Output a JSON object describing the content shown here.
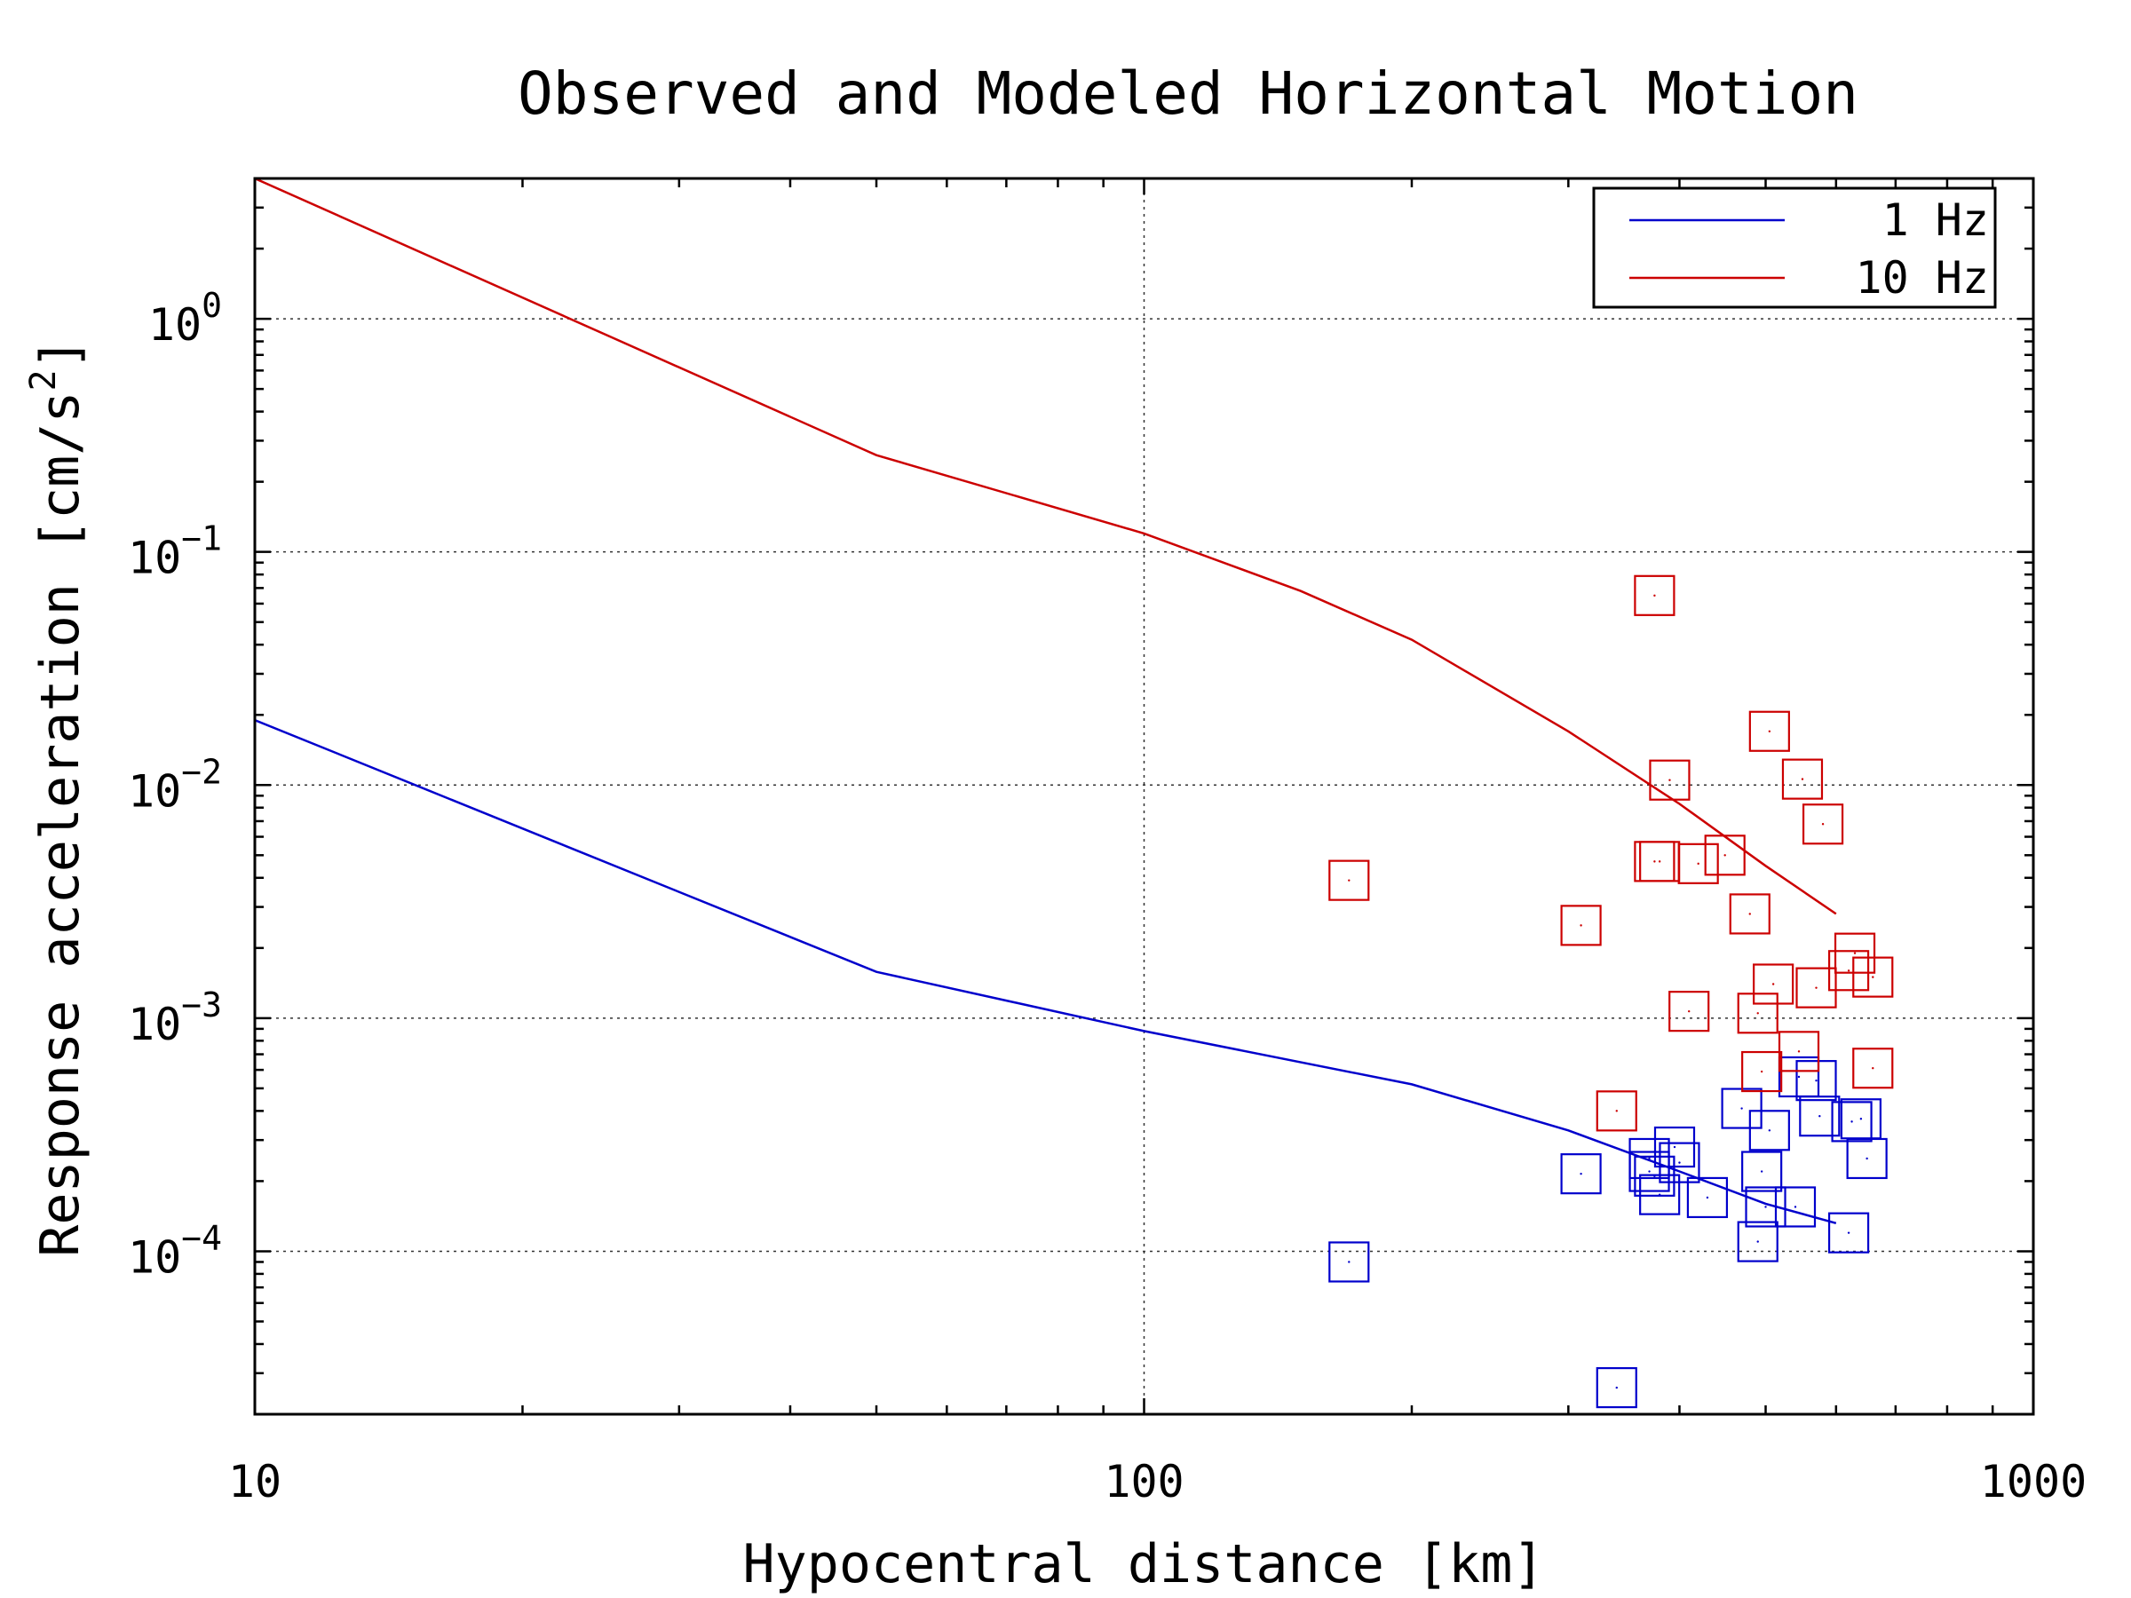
{
  "chart_data": {
    "type": "scatter",
    "title": "Observed and Modeled Horizontal Motion",
    "xlabel": "Hypocentral distance [km]",
    "ylabel": "Response acceleration [cm/s²]",
    "ylabel_base": "Response acceleration [cm/s",
    "ylabel_sup": "2",
    "ylabel_end": "]",
    "x_scale": "log",
    "y_scale": "log",
    "xlim": [
      10,
      1000
    ],
    "ylim": [
      2e-05,
      4
    ],
    "grid": true,
    "legend_position": "top-right",
    "x_ticks": [
      {
        "value": 10,
        "label": "10"
      },
      {
        "value": 100,
        "label": "100"
      },
      {
        "value": 1000,
        "label": "1000"
      }
    ],
    "y_ticks": [
      {
        "value": 0.0001,
        "base": "10",
        "exp": "−4"
      },
      {
        "value": 0.001,
        "base": "10",
        "exp": "−3"
      },
      {
        "value": 0.01,
        "base": "10",
        "exp": "−2"
      },
      {
        "value": 0.1,
        "base": "10",
        "exp": "−1"
      },
      {
        "value": 1,
        "base": "10",
        "exp": "0"
      }
    ],
    "series": [
      {
        "name": "1 Hz",
        "color": "#0000cc",
        "model_line": [
          [
            10,
            0.019
          ],
          [
            50,
            0.00158
          ],
          [
            100,
            0.00088
          ],
          [
            200,
            0.00052
          ],
          [
            300,
            0.00033
          ],
          [
            400,
            0.00022
          ],
          [
            500,
            0.00016
          ],
          [
            600,
            0.000132
          ]
        ],
        "observed": [
          [
            170,
            9e-05
          ],
          [
            310,
            0.000215
          ],
          [
            340,
            2.6e-05
          ],
          [
            370,
            0.00025
          ],
          [
            370,
            0.00022
          ],
          [
            375,
            0.00021
          ],
          [
            380,
            0.000175
          ],
          [
            395,
            0.00028
          ],
          [
            400,
            0.00024
          ],
          [
            430,
            0.00017
          ],
          [
            470,
            0.00041
          ],
          [
            490,
            0.00011
          ],
          [
            495,
            0.00022
          ],
          [
            500,
            0.000155
          ],
          [
            505,
            0.00033
          ],
          [
            540,
            0.000155
          ],
          [
            545,
            0.00056
          ],
          [
            570,
            0.00054
          ],
          [
            575,
            0.00038
          ],
          [
            620,
            0.00012
          ],
          [
            625,
            0.00036
          ],
          [
            640,
            0.00037
          ],
          [
            650,
            0.00025
          ]
        ]
      },
      {
        "name": "10 Hz",
        "color": "#cc0000",
        "model_line": [
          [
            10,
            4.0
          ],
          [
            50,
            0.26
          ],
          [
            100,
            0.12
          ],
          [
            150,
            0.068
          ],
          [
            200,
            0.042
          ],
          [
            300,
            0.017
          ],
          [
            400,
            0.0083
          ],
          [
            500,
            0.0045
          ],
          [
            600,
            0.0028
          ]
        ],
        "observed": [
          [
            170,
            0.0039
          ],
          [
            310,
            0.0025
          ],
          [
            340,
            0.0004
          ],
          [
            375,
            0.065
          ],
          [
            375,
            0.0047
          ],
          [
            380,
            0.0047
          ],
          [
            390,
            0.0105
          ],
          [
            410,
            0.00107
          ],
          [
            420,
            0.0046
          ],
          [
            450,
            0.005
          ],
          [
            480,
            0.0028
          ],
          [
            490,
            0.00105
          ],
          [
            495,
            0.00059
          ],
          [
            505,
            0.017
          ],
          [
            510,
            0.0014
          ],
          [
            545,
            0.00072
          ],
          [
            550,
            0.0106
          ],
          [
            570,
            0.00135
          ],
          [
            580,
            0.0068
          ],
          [
            620,
            0.0016
          ],
          [
            630,
            0.0019
          ],
          [
            660,
            0.0015
          ],
          [
            660,
            0.00061
          ]
        ]
      }
    ]
  }
}
